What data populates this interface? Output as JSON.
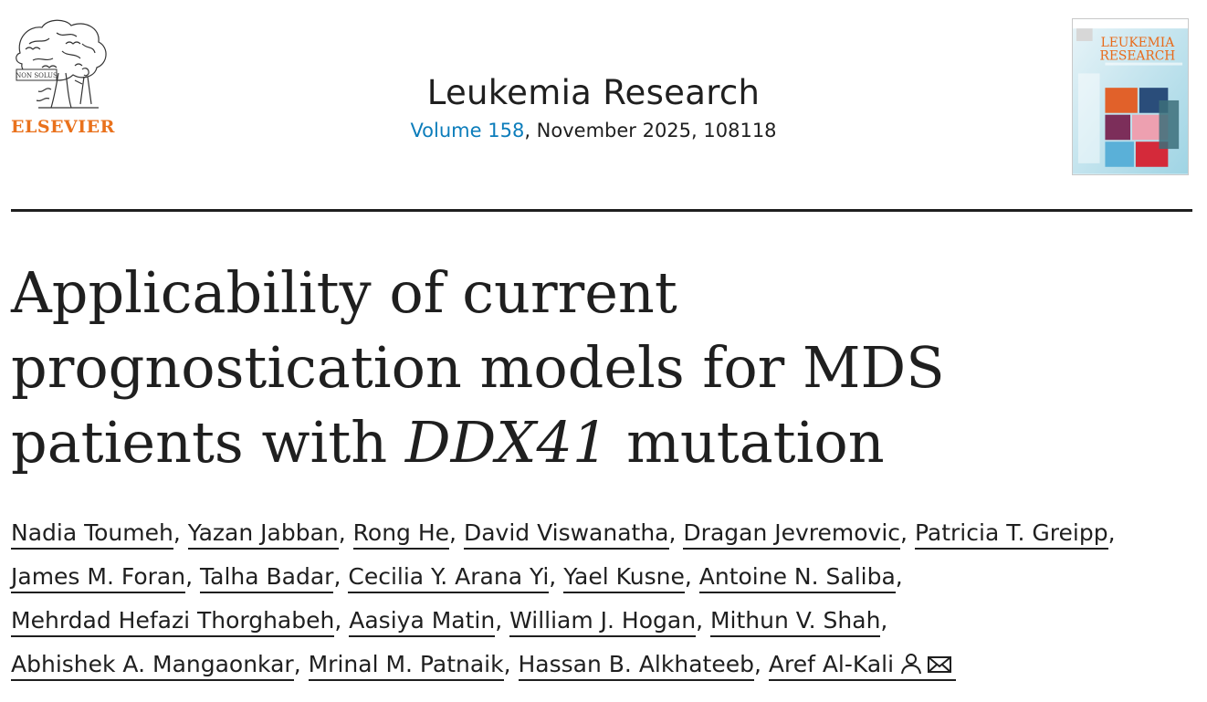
{
  "publisher": {
    "name": "ELSEVIER",
    "motto": "NON SOLUS"
  },
  "journal": {
    "title": "Leukemia Research",
    "volume_link": "Volume 158",
    "issue_rest": ", November 2025, 108118",
    "cover": {
      "title_line1": "LEUKEMIA",
      "title_line2": "RESEARCH"
    }
  },
  "article": {
    "title_part1": "Applicability of current prognostication models for MDS patients with ",
    "title_italic": "DDX41",
    "title_part2": " mutation"
  },
  "authors": [
    "Nadia Toumeh",
    "Yazan Jabban",
    "Rong He",
    "David Viswanatha",
    "Dragan Jevremovic",
    "Patricia T. Greipp",
    "James M. Foran",
    "Talha Badar",
    "Cecilia Y. Arana Yi",
    "Yael Kusne",
    "Antoine N. Saliba",
    "Mehrdad Hefazi Thorghabeh",
    "Aasiya Matin",
    "William J. Hogan",
    "Mithun V. Shah",
    "Abhishek A. Mangaonkar",
    "Mrinal M. Patnaik",
    "Hassan B. Alkhateeb",
    "Aref Al-Kali"
  ],
  "author_separator": ",",
  "icons": {
    "corresponding": "person-icon",
    "email": "envelope-icon"
  },
  "colors": {
    "publisher_orange": "#e9711c",
    "link_blue": "#0c7dbb",
    "text": "#1f1f1f"
  }
}
